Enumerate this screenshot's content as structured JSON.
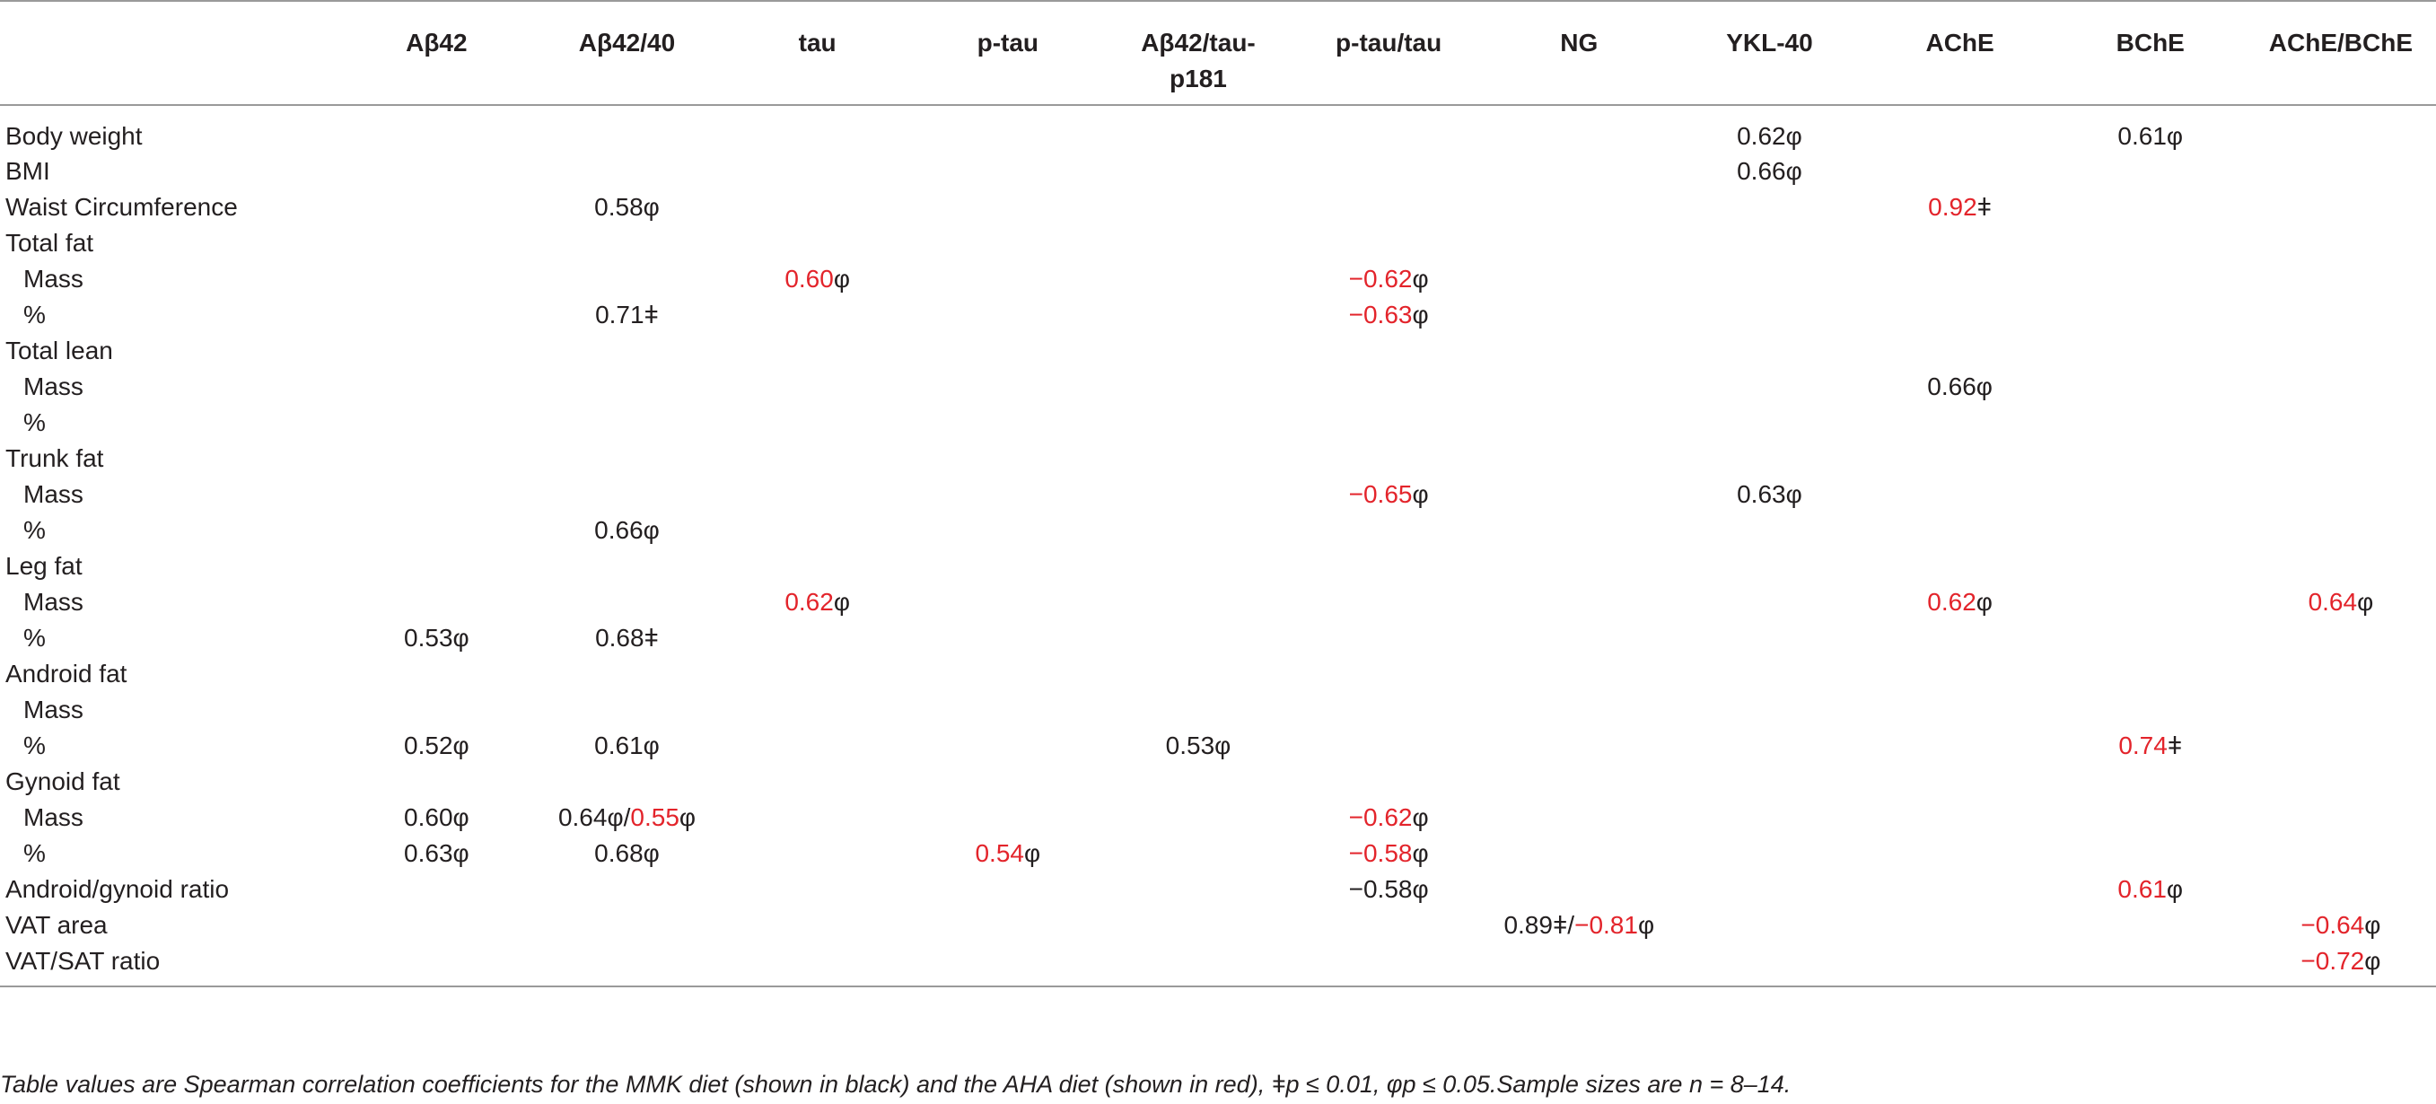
{
  "headers": [
    "",
    "Aβ42",
    "Aβ42/40",
    "tau",
    "p-tau",
    "Aβ42/tau-p181",
    "p-tau/tau",
    "NG",
    "YKL-40",
    "AChE",
    "BChE",
    "AChE/BChE"
  ],
  "rows": [
    {
      "label": "Body weight",
      "sub": false,
      "cells": [
        [],
        [],
        [],
        [],
        [],
        [],
        [],
        [
          {
            "t": "0.62φ",
            "c": "b"
          }
        ],
        [],
        [
          {
            "t": "0.61φ",
            "c": "b"
          }
        ],
        []
      ]
    },
    {
      "label": "BMI",
      "sub": false,
      "cells": [
        [],
        [],
        [],
        [],
        [],
        [],
        [],
        [
          {
            "t": "0.66φ",
            "c": "b"
          }
        ],
        [],
        [],
        []
      ]
    },
    {
      "label": "Waist Circumference",
      "sub": false,
      "cells": [
        [],
        [
          {
            "t": "0.58φ",
            "c": "b"
          }
        ],
        [],
        [],
        [],
        [],
        [],
        [],
        [
          {
            "t": "0.92",
            "c": "r"
          },
          {
            "t": "ǂ",
            "c": "b"
          }
        ],
        [],
        []
      ]
    },
    {
      "label": "Total fat",
      "sub": false,
      "cells": [
        [],
        [],
        [],
        [],
        [],
        [],
        [],
        [],
        [],
        [],
        []
      ]
    },
    {
      "label": "Mass",
      "sub": true,
      "cells": [
        [],
        [],
        [
          {
            "t": "0.60",
            "c": "r"
          },
          {
            "t": "φ",
            "c": "b"
          }
        ],
        [],
        [],
        [
          {
            "t": "−0.62",
            "c": "r"
          },
          {
            "t": "φ",
            "c": "b"
          }
        ],
        [],
        [],
        [],
        [],
        []
      ]
    },
    {
      "label": "%",
      "sub": true,
      "cells": [
        [],
        [
          {
            "t": "0.71ǂ",
            "c": "b"
          }
        ],
        [],
        [],
        [],
        [
          {
            "t": "−0.63",
            "c": "r"
          },
          {
            "t": "φ",
            "c": "b"
          }
        ],
        [],
        [],
        [],
        [],
        []
      ]
    },
    {
      "label": "Total lean",
      "sub": false,
      "cells": [
        [],
        [],
        [],
        [],
        [],
        [],
        [],
        [],
        [],
        [],
        []
      ]
    },
    {
      "label": "Mass",
      "sub": true,
      "cells": [
        [],
        [],
        [],
        [],
        [],
        [],
        [],
        [],
        [
          {
            "t": "0.66φ",
            "c": "b"
          }
        ],
        [],
        []
      ]
    },
    {
      "label": "%",
      "sub": true,
      "cells": [
        [],
        [],
        [],
        [],
        [],
        [],
        [],
        [],
        [],
        [],
        []
      ]
    },
    {
      "label": "Trunk fat",
      "sub": false,
      "cells": [
        [],
        [],
        [],
        [],
        [],
        [],
        [],
        [],
        [],
        [],
        []
      ]
    },
    {
      "label": "Mass",
      "sub": true,
      "cells": [
        [],
        [],
        [],
        [],
        [],
        [
          {
            "t": "−0.65",
            "c": "r"
          },
          {
            "t": "φ",
            "c": "b"
          }
        ],
        [],
        [
          {
            "t": "0.63φ",
            "c": "b"
          }
        ],
        [],
        [],
        []
      ]
    },
    {
      "label": "%",
      "sub": true,
      "cells": [
        [],
        [
          {
            "t": "0.66φ",
            "c": "b"
          }
        ],
        [],
        [],
        [],
        [],
        [],
        [],
        [],
        [],
        []
      ]
    },
    {
      "label": "Leg fat",
      "sub": false,
      "cells": [
        [],
        [],
        [],
        [],
        [],
        [],
        [],
        [],
        [],
        [],
        []
      ]
    },
    {
      "label": "Mass",
      "sub": true,
      "cells": [
        [],
        [],
        [
          {
            "t": "0.62",
            "c": "r"
          },
          {
            "t": "φ",
            "c": "b"
          }
        ],
        [],
        [],
        [],
        [],
        [],
        [
          {
            "t": "0.62",
            "c": "r"
          },
          {
            "t": "φ",
            "c": "b"
          }
        ],
        [],
        [
          {
            "t": "0.64",
            "c": "r"
          },
          {
            "t": "φ",
            "c": "b"
          }
        ]
      ]
    },
    {
      "label": "%",
      "sub": true,
      "cells": [
        [
          {
            "t": "0.53φ",
            "c": "b"
          }
        ],
        [
          {
            "t": "0.68ǂ",
            "c": "b"
          }
        ],
        [],
        [],
        [],
        [],
        [],
        [],
        [],
        [],
        []
      ]
    },
    {
      "label": "Android fat",
      "sub": false,
      "cells": [
        [],
        [],
        [],
        [],
        [],
        [],
        [],
        [],
        [],
        [],
        []
      ]
    },
    {
      "label": "Mass",
      "sub": true,
      "cells": [
        [],
        [],
        [],
        [],
        [],
        [],
        [],
        [],
        [],
        [],
        []
      ]
    },
    {
      "label": "%",
      "sub": true,
      "cells": [
        [
          {
            "t": "0.52φ",
            "c": "b"
          }
        ],
        [
          {
            "t": "0.61φ",
            "c": "b"
          }
        ],
        [],
        [],
        [
          {
            "t": "0.53φ",
            "c": "b"
          }
        ],
        [],
        [],
        [],
        [],
        [
          {
            "t": "0.74",
            "c": "r"
          },
          {
            "t": "ǂ",
            "c": "b"
          }
        ],
        []
      ]
    },
    {
      "label": "Gynoid fat",
      "sub": false,
      "cells": [
        [],
        [],
        [],
        [],
        [],
        [],
        [],
        [],
        [],
        [],
        []
      ]
    },
    {
      "label": "Mass",
      "sub": true,
      "cells": [
        [
          {
            "t": "0.60φ",
            "c": "b"
          }
        ],
        [
          {
            "t": "0.64φ/",
            "c": "b"
          },
          {
            "t": "0.55",
            "c": "r"
          },
          {
            "t": "φ",
            "c": "b"
          }
        ],
        [],
        [],
        [],
        [
          {
            "t": "−0.62",
            "c": "r"
          },
          {
            "t": "φ",
            "c": "b"
          }
        ],
        [],
        [],
        [],
        [],
        []
      ]
    },
    {
      "label": "%",
      "sub": true,
      "cells": [
        [
          {
            "t": "0.63φ",
            "c": "b"
          }
        ],
        [
          {
            "t": "0.68φ",
            "c": "b"
          }
        ],
        [],
        [
          {
            "t": "0.54",
            "c": "r"
          },
          {
            "t": "φ",
            "c": "b"
          }
        ],
        [],
        [
          {
            "t": "−0.58",
            "c": "r"
          },
          {
            "t": "φ",
            "c": "b"
          }
        ],
        [],
        [],
        [],
        [],
        []
      ]
    },
    {
      "label": "Android/gynoid ratio",
      "sub": false,
      "cells": [
        [],
        [],
        [],
        [],
        [],
        [
          {
            "t": "−0.58φ",
            "c": "b"
          }
        ],
        [],
        [],
        [],
        [
          {
            "t": "0.61",
            "c": "r"
          },
          {
            "t": "φ",
            "c": "b"
          }
        ],
        []
      ]
    },
    {
      "label": "VAT area",
      "sub": false,
      "cells": [
        [],
        [],
        [],
        [],
        [],
        [],
        [
          {
            "t": "0.89ǂ/",
            "c": "b"
          },
          {
            "t": "−0.81",
            "c": "r"
          },
          {
            "t": "φ",
            "c": "b"
          }
        ],
        [],
        [],
        [],
        [
          {
            "t": "−0.64",
            "c": "r"
          },
          {
            "t": "φ",
            "c": "b"
          }
        ]
      ]
    },
    {
      "label": "VAT/SAT ratio",
      "sub": false,
      "cells": [
        [],
        [],
        [],
        [],
        [],
        [],
        [],
        [],
        [],
        [],
        [
          {
            "t": "−0.72",
            "c": "r"
          },
          {
            "t": "φ",
            "c": "b"
          }
        ]
      ]
    }
  ],
  "footnote": "Table values are Spearman correlation coefficients for the MMK diet (shown in black) and the AHA diet (shown in red), ǂp ≤ 0.01, φp ≤ 0.05.Sample sizes are n = 8–14.",
  "colors": {
    "mmk_text": "#231f20",
    "aha_text": "#e3242b",
    "rule": "#9a9a9a"
  }
}
